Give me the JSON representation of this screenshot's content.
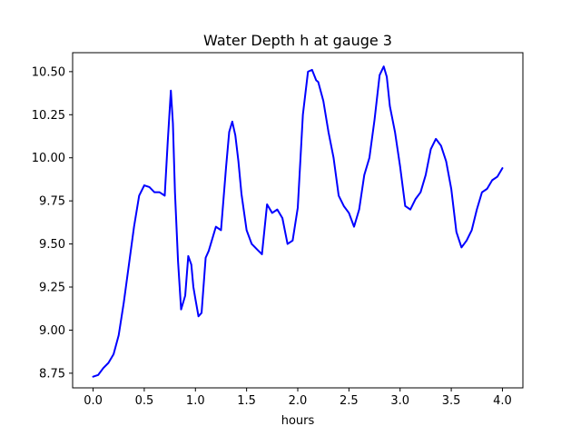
{
  "chart_data": {
    "type": "line",
    "title": "Water Depth h at gauge 3",
    "xlabel": "hours",
    "ylabel": "",
    "xlim": [
      -0.2,
      4.2
    ],
    "ylim": [
      8.665,
      10.61
    ],
    "xticks": [
      0.0,
      0.5,
      1.0,
      1.5,
      2.0,
      2.5,
      3.0,
      3.5,
      4.0
    ],
    "xtick_labels": [
      "0.0",
      "0.5",
      "1.0",
      "1.5",
      "2.0",
      "2.5",
      "3.0",
      "3.5",
      "4.0"
    ],
    "yticks": [
      8.75,
      9.0,
      9.25,
      9.5,
      9.75,
      10.0,
      10.25,
      10.5
    ],
    "ytick_labels": [
      "8.75",
      "9.00",
      "9.25",
      "9.50",
      "9.75",
      "10.00",
      "10.25",
      "10.50"
    ],
    "grid": false,
    "legend": "none",
    "series": [
      {
        "color": "#0000ff",
        "x": [
          0.0,
          0.05,
          0.1,
          0.15,
          0.2,
          0.25,
          0.3,
          0.35,
          0.4,
          0.45,
          0.5,
          0.55,
          0.6,
          0.65,
          0.7,
          0.73,
          0.76,
          0.78,
          0.8,
          0.83,
          0.86,
          0.9,
          0.93,
          0.96,
          0.98,
          1.0,
          1.03,
          1.06,
          1.1,
          1.13,
          1.16,
          1.2,
          1.25,
          1.3,
          1.33,
          1.36,
          1.39,
          1.42,
          1.45,
          1.5,
          1.55,
          1.6,
          1.65,
          1.7,
          1.75,
          1.8,
          1.85,
          1.9,
          1.95,
          2.0,
          2.05,
          2.1,
          2.14,
          2.18,
          2.2,
          2.25,
          2.3,
          2.35,
          2.4,
          2.45,
          2.5,
          2.55,
          2.6,
          2.65,
          2.7,
          2.75,
          2.8,
          2.84,
          2.87,
          2.9,
          2.95,
          3.0,
          3.05,
          3.1,
          3.15,
          3.2,
          3.25,
          3.3,
          3.35,
          3.4,
          3.45,
          3.5,
          3.55,
          3.6,
          3.65,
          3.7,
          3.75,
          3.8,
          3.85,
          3.9,
          3.95,
          4.0
        ],
        "y": [
          8.73,
          8.74,
          8.78,
          8.81,
          8.86,
          8.97,
          9.16,
          9.38,
          9.6,
          9.78,
          9.84,
          9.83,
          9.8,
          9.8,
          9.78,
          10.1,
          10.39,
          10.2,
          9.8,
          9.4,
          9.12,
          9.2,
          9.43,
          9.38,
          9.25,
          9.18,
          9.08,
          9.1,
          9.42,
          9.46,
          9.52,
          9.6,
          9.58,
          9.95,
          10.15,
          10.21,
          10.13,
          9.98,
          9.79,
          9.58,
          9.5,
          9.47,
          9.44,
          9.73,
          9.68,
          9.7,
          9.65,
          9.5,
          9.52,
          9.71,
          10.25,
          10.5,
          10.51,
          10.45,
          10.44,
          10.33,
          10.15,
          10.0,
          9.78,
          9.72,
          9.68,
          9.6,
          9.7,
          9.9,
          10.0,
          10.22,
          10.48,
          10.53,
          10.47,
          10.3,
          10.15,
          9.95,
          9.72,
          9.7,
          9.76,
          9.8,
          9.9,
          10.05,
          10.11,
          10.07,
          9.98,
          9.82,
          9.57,
          9.48,
          9.52,
          9.58,
          9.7,
          9.8,
          9.82,
          9.87,
          9.89,
          9.94
        ]
      }
    ]
  }
}
